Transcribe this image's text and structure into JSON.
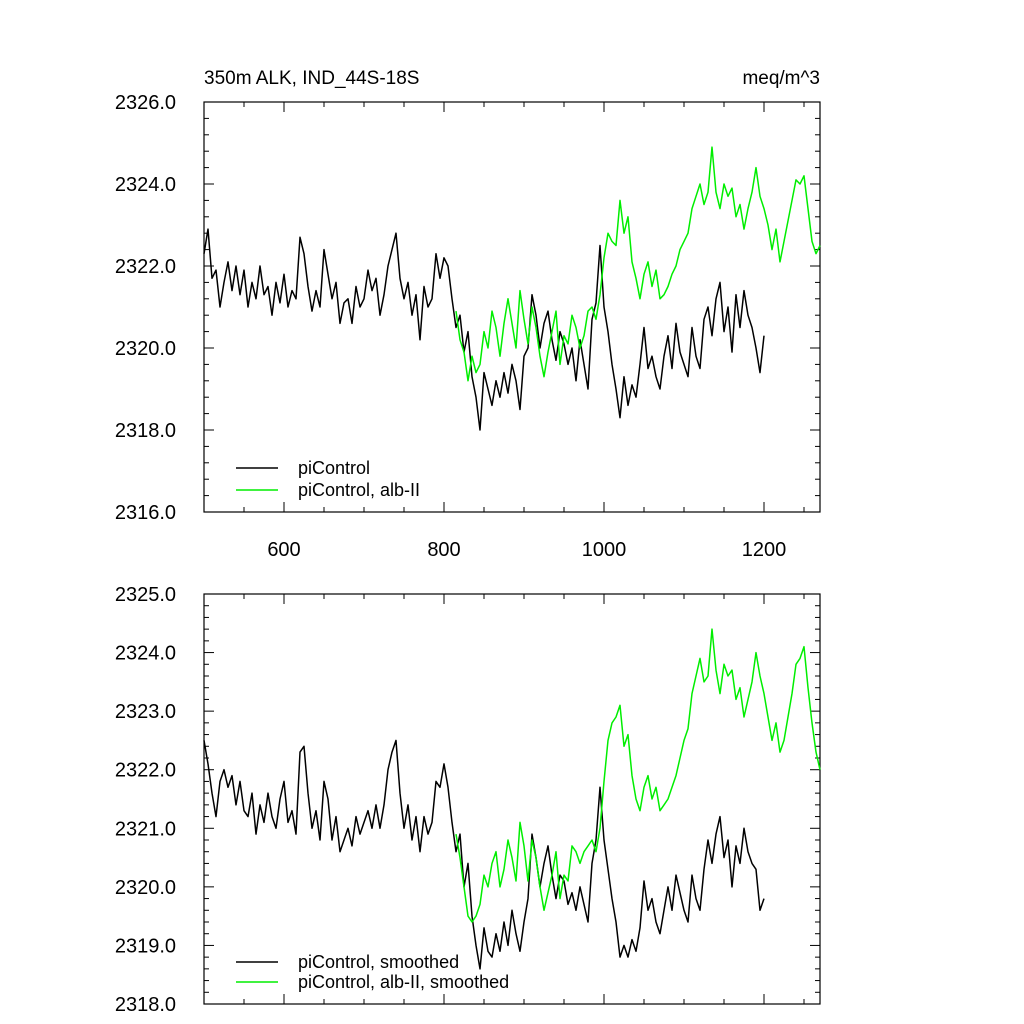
{
  "colors": {
    "control": "#000000",
    "alb": "#00ee00"
  },
  "chart_data": [
    {
      "type": "line",
      "title_left": "350m ALK, IND_44S-18S",
      "title_right": "meq/m^3",
      "xlim": [
        500,
        1270
      ],
      "ylim": [
        2316.0,
        2326.0
      ],
      "xticks": [
        600,
        800,
        1000,
        1200
      ],
      "xtick_labels": [
        "600",
        "800",
        "1000",
        "1200"
      ],
      "yticks": [
        2316.0,
        2318.0,
        2320.0,
        2322.0,
        2324.0,
        2326.0
      ],
      "ytick_labels": [
        "2316.0",
        "2318.0",
        "2320.0",
        "2322.0",
        "2324.0",
        "2326.0"
      ],
      "legend": [
        "piControl",
        "piControl, alb-II"
      ],
      "legend_position": "bottom-left",
      "series": [
        {
          "name": "piControl",
          "color": "control",
          "x": [
            500,
            505,
            510,
            515,
            520,
            525,
            530,
            535,
            540,
            545,
            550,
            555,
            560,
            565,
            570,
            575,
            580,
            585,
            590,
            595,
            600,
            605,
            610,
            615,
            620,
            625,
            630,
            635,
            640,
            645,
            650,
            655,
            660,
            665,
            670,
            675,
            680,
            685,
            690,
            695,
            700,
            705,
            710,
            715,
            720,
            725,
            730,
            735,
            740,
            745,
            750,
            755,
            760,
            765,
            770,
            775,
            780,
            785,
            790,
            795,
            800,
            805,
            810,
            815,
            820,
            825,
            830,
            835,
            840,
            845,
            850,
            855,
            860,
            865,
            870,
            875,
            880,
            885,
            890,
            895,
            900,
            905,
            910,
            915,
            920,
            925,
            930,
            935,
            940,
            945,
            950,
            955,
            960,
            965,
            970,
            975,
            980,
            985,
            990,
            995,
            1000,
            1005,
            1010,
            1015,
            1020,
            1025,
            1030,
            1035,
            1040,
            1045,
            1050,
            1055,
            1060,
            1065,
            1070,
            1075,
            1080,
            1085,
            1090,
            1095,
            1100,
            1105,
            1110,
            1115,
            1120,
            1125,
            1130,
            1135,
            1140,
            1145,
            1150,
            1155,
            1160,
            1165,
            1170,
            1175,
            1180,
            1185,
            1190,
            1195,
            1200
          ],
          "y": [
            2322.3,
            2322.9,
            2321.7,
            2321.9,
            2321.0,
            2321.6,
            2322.1,
            2321.4,
            2322.0,
            2321.3,
            2321.9,
            2321.0,
            2321.6,
            2321.2,
            2322.0,
            2321.3,
            2321.5,
            2320.8,
            2321.6,
            2321.1,
            2321.8,
            2321.0,
            2321.4,
            2321.2,
            2322.7,
            2322.3,
            2321.5,
            2320.9,
            2321.4,
            2321.0,
            2322.4,
            2321.8,
            2321.2,
            2321.6,
            2320.6,
            2321.1,
            2321.2,
            2320.6,
            2321.5,
            2321.0,
            2321.2,
            2321.9,
            2321.4,
            2321.7,
            2320.8,
            2321.3,
            2322.0,
            2322.4,
            2322.8,
            2321.7,
            2321.2,
            2321.6,
            2320.8,
            2321.3,
            2320.2,
            2321.5,
            2321.0,
            2321.2,
            2322.3,
            2321.7,
            2322.2,
            2322.0,
            2321.2,
            2320.5,
            2320.8,
            2319.9,
            2320.4,
            2319.3,
            2318.8,
            2318.0,
            2319.4,
            2319.0,
            2318.6,
            2319.2,
            2318.8,
            2319.4,
            2318.9,
            2319.6,
            2319.2,
            2318.5,
            2319.8,
            2320.0,
            2321.3,
            2320.8,
            2320.0,
            2320.6,
            2320.9,
            2320.2,
            2319.7,
            2320.4,
            2320.1,
            2319.6,
            2320.0,
            2319.2,
            2320.2,
            2319.6,
            2319.0,
            2320.7,
            2321.1,
            2322.5,
            2321.0,
            2320.4,
            2319.6,
            2319.0,
            2318.3,
            2319.3,
            2318.6,
            2319.1,
            2318.8,
            2319.6,
            2320.5,
            2319.5,
            2319.8,
            2319.3,
            2319.0,
            2319.8,
            2320.3,
            2319.5,
            2320.6,
            2319.9,
            2319.6,
            2319.3,
            2320.5,
            2319.8,
            2319.5,
            2320.7,
            2321.0,
            2320.3,
            2321.2,
            2321.6,
            2320.4,
            2321.0,
            2319.9,
            2321.3,
            2320.5,
            2321.4,
            2320.8,
            2320.5,
            2320.0,
            2319.4,
            2320.3
          ]
        },
        {
          "name": "piControl, alb-II",
          "color": "alb",
          "x": [
            815,
            820,
            825,
            830,
            835,
            840,
            845,
            850,
            855,
            860,
            865,
            870,
            875,
            880,
            885,
            890,
            895,
            900,
            905,
            910,
            915,
            920,
            925,
            930,
            935,
            940,
            945,
            950,
            955,
            960,
            965,
            970,
            975,
            980,
            985,
            990,
            995,
            1000,
            1005,
            1010,
            1015,
            1020,
            1025,
            1030,
            1035,
            1040,
            1045,
            1050,
            1055,
            1060,
            1065,
            1070,
            1075,
            1080,
            1085,
            1090,
            1095,
            1100,
            1105,
            1110,
            1115,
            1120,
            1125,
            1130,
            1135,
            1140,
            1145,
            1150,
            1155,
            1160,
            1165,
            1170,
            1175,
            1180,
            1185,
            1190,
            1195,
            1200,
            1205,
            1210,
            1215,
            1220,
            1225,
            1230,
            1235,
            1240,
            1245,
            1250,
            1255,
            1260,
            1265,
            1270
          ],
          "y": [
            2320.9,
            2320.2,
            2319.9,
            2319.2,
            2319.8,
            2319.4,
            2319.6,
            2320.4,
            2320.0,
            2320.9,
            2320.5,
            2319.8,
            2320.6,
            2321.2,
            2320.6,
            2320.0,
            2321.4,
            2320.7,
            2320.1,
            2321.0,
            2320.5,
            2319.8,
            2319.3,
            2319.9,
            2320.4,
            2320.9,
            2319.6,
            2320.3,
            2320.1,
            2320.8,
            2320.5,
            2320.0,
            2320.3,
            2320.9,
            2321.0,
            2320.7,
            2321.3,
            2322.2,
            2322.8,
            2322.6,
            2322.5,
            2323.6,
            2322.8,
            2323.2,
            2322.1,
            2321.7,
            2321.2,
            2321.8,
            2322.1,
            2321.5,
            2321.9,
            2321.2,
            2321.3,
            2321.5,
            2321.8,
            2322.0,
            2322.4,
            2322.6,
            2322.8,
            2323.4,
            2323.7,
            2324.0,
            2323.5,
            2323.8,
            2324.9,
            2323.8,
            2323.4,
            2324.0,
            2323.7,
            2323.9,
            2323.2,
            2323.5,
            2322.9,
            2323.4,
            2323.8,
            2324.4,
            2323.7,
            2323.4,
            2323.0,
            2322.4,
            2322.9,
            2322.1,
            2322.6,
            2323.1,
            2323.6,
            2324.1,
            2324.0,
            2324.2,
            2323.4,
            2322.6,
            2322.3,
            2322.5
          ]
        }
      ]
    },
    {
      "type": "line",
      "xlim": [
        500,
        1270
      ],
      "ylim": [
        2318.0,
        2325.0
      ],
      "xticks": [
        600,
        800,
        1000,
        1200
      ],
      "yticks": [
        2318.0,
        2319.0,
        2320.0,
        2321.0,
        2322.0,
        2323.0,
        2324.0,
        2325.0
      ],
      "ytick_labels": [
        "2318.0",
        "2319.0",
        "2320.0",
        "2321.0",
        "2322.0",
        "2323.0",
        "2324.0",
        "2325.0"
      ],
      "legend": [
        "piControl, smoothed",
        "piControl, alb-II, smoothed"
      ],
      "legend_position": "bottom-left",
      "series": [
        {
          "name": "piControl, smoothed",
          "color": "control",
          "x": [
            500,
            505,
            510,
            515,
            520,
            525,
            530,
            535,
            540,
            545,
            550,
            555,
            560,
            565,
            570,
            575,
            580,
            585,
            590,
            595,
            600,
            605,
            610,
            615,
            620,
            625,
            630,
            635,
            640,
            645,
            650,
            655,
            660,
            665,
            670,
            675,
            680,
            685,
            690,
            695,
            700,
            705,
            710,
            715,
            720,
            725,
            730,
            735,
            740,
            745,
            750,
            755,
            760,
            765,
            770,
            775,
            780,
            785,
            790,
            795,
            800,
            805,
            810,
            815,
            820,
            825,
            830,
            835,
            840,
            845,
            850,
            855,
            860,
            865,
            870,
            875,
            880,
            885,
            890,
            895,
            900,
            905,
            910,
            915,
            920,
            925,
            930,
            935,
            940,
            945,
            950,
            955,
            960,
            965,
            970,
            975,
            980,
            985,
            990,
            995,
            1000,
            1005,
            1010,
            1015,
            1020,
            1025,
            1030,
            1035,
            1040,
            1045,
            1050,
            1055,
            1060,
            1065,
            1070,
            1075,
            1080,
            1085,
            1090,
            1095,
            1100,
            1105,
            1110,
            1115,
            1120,
            1125,
            1130,
            1135,
            1140,
            1145,
            1150,
            1155,
            1160,
            1165,
            1170,
            1175,
            1180,
            1185,
            1190,
            1195,
            1200
          ],
          "y": [
            2322.5,
            2322.1,
            2321.6,
            2321.2,
            2321.8,
            2322.0,
            2321.7,
            2321.9,
            2321.4,
            2321.8,
            2321.3,
            2321.2,
            2321.6,
            2320.9,
            2321.4,
            2321.1,
            2321.6,
            2321.2,
            2321.0,
            2321.5,
            2321.8,
            2321.1,
            2321.3,
            2320.9,
            2322.3,
            2322.4,
            2321.6,
            2321.0,
            2321.3,
            2320.8,
            2321.8,
            2321.5,
            2320.8,
            2321.2,
            2320.6,
            2320.8,
            2321.0,
            2320.7,
            2321.2,
            2320.9,
            2321.1,
            2321.3,
            2321.0,
            2321.4,
            2321.0,
            2321.4,
            2322.0,
            2322.3,
            2322.5,
            2321.6,
            2321.0,
            2321.4,
            2320.8,
            2321.2,
            2320.6,
            2321.2,
            2320.9,
            2321.1,
            2321.8,
            2321.7,
            2322.1,
            2321.7,
            2321.1,
            2320.6,
            2320.9,
            2320.0,
            2320.4,
            2319.5,
            2319.0,
            2318.6,
            2319.3,
            2318.9,
            2318.8,
            2319.2,
            2318.9,
            2319.4,
            2319.0,
            2319.6,
            2319.2,
            2318.9,
            2319.4,
            2319.8,
            2320.9,
            2320.5,
            2320.0,
            2320.4,
            2320.7,
            2320.2,
            2319.8,
            2320.2,
            2320.1,
            2319.7,
            2319.9,
            2319.6,
            2320.0,
            2319.7,
            2319.4,
            2320.4,
            2320.8,
            2321.7,
            2320.8,
            2320.3,
            2319.8,
            2319.4,
            2318.8,
            2319.0,
            2318.8,
            2319.1,
            2318.9,
            2319.3,
            2320.1,
            2319.6,
            2319.8,
            2319.4,
            2319.2,
            2319.6,
            2320.0,
            2319.6,
            2320.2,
            2319.9,
            2319.6,
            2319.4,
            2320.2,
            2319.8,
            2319.6,
            2320.3,
            2320.8,
            2320.4,
            2320.9,
            2321.2,
            2320.5,
            2320.8,
            2320.0,
            2320.7,
            2320.4,
            2321.0,
            2320.6,
            2320.4,
            2320.3,
            2319.6,
            2319.8
          ]
        },
        {
          "name": "piControl, alb-II, smoothed",
          "color": "alb",
          "x": [
            815,
            820,
            825,
            830,
            835,
            840,
            845,
            850,
            855,
            860,
            865,
            870,
            875,
            880,
            885,
            890,
            895,
            900,
            905,
            910,
            915,
            920,
            925,
            930,
            935,
            940,
            945,
            950,
            955,
            960,
            965,
            970,
            975,
            980,
            985,
            990,
            995,
            1000,
            1005,
            1010,
            1015,
            1020,
            1025,
            1030,
            1035,
            1040,
            1045,
            1050,
            1055,
            1060,
            1065,
            1070,
            1075,
            1080,
            1085,
            1090,
            1095,
            1100,
            1105,
            1110,
            1115,
            1120,
            1125,
            1130,
            1135,
            1140,
            1145,
            1150,
            1155,
            1160,
            1165,
            1170,
            1175,
            1180,
            1185,
            1190,
            1195,
            1200,
            1205,
            1210,
            1215,
            1220,
            1225,
            1230,
            1235,
            1240,
            1245,
            1250,
            1255,
            1260,
            1265,
            1270
          ],
          "y": [
            2320.9,
            2320.5,
            2320.0,
            2319.5,
            2319.4,
            2319.5,
            2319.7,
            2320.2,
            2320.0,
            2320.4,
            2320.6,
            2320.0,
            2320.3,
            2320.8,
            2320.5,
            2320.1,
            2321.1,
            2320.7,
            2320.1,
            2320.8,
            2320.5,
            2320.0,
            2319.6,
            2319.9,
            2320.2,
            2320.6,
            2319.8,
            2320.2,
            2320.1,
            2320.7,
            2320.6,
            2320.4,
            2320.6,
            2320.7,
            2320.8,
            2320.6,
            2321.0,
            2321.8,
            2322.5,
            2322.8,
            2322.9,
            2323.1,
            2322.4,
            2322.6,
            2321.9,
            2321.5,
            2321.3,
            2321.7,
            2321.9,
            2321.5,
            2321.7,
            2321.3,
            2321.4,
            2321.5,
            2321.7,
            2321.9,
            2322.2,
            2322.5,
            2322.7,
            2323.3,
            2323.6,
            2323.9,
            2323.5,
            2323.6,
            2324.4,
            2323.7,
            2323.3,
            2323.8,
            2323.6,
            2323.7,
            2323.2,
            2323.4,
            2322.9,
            2323.2,
            2323.5,
            2324.0,
            2323.6,
            2323.3,
            2322.9,
            2322.5,
            2322.8,
            2322.3,
            2322.5,
            2322.9,
            2323.3,
            2323.8,
            2323.9,
            2324.1,
            2323.4,
            2322.8,
            2322.3,
            2322.0
          ]
        }
      ]
    }
  ]
}
